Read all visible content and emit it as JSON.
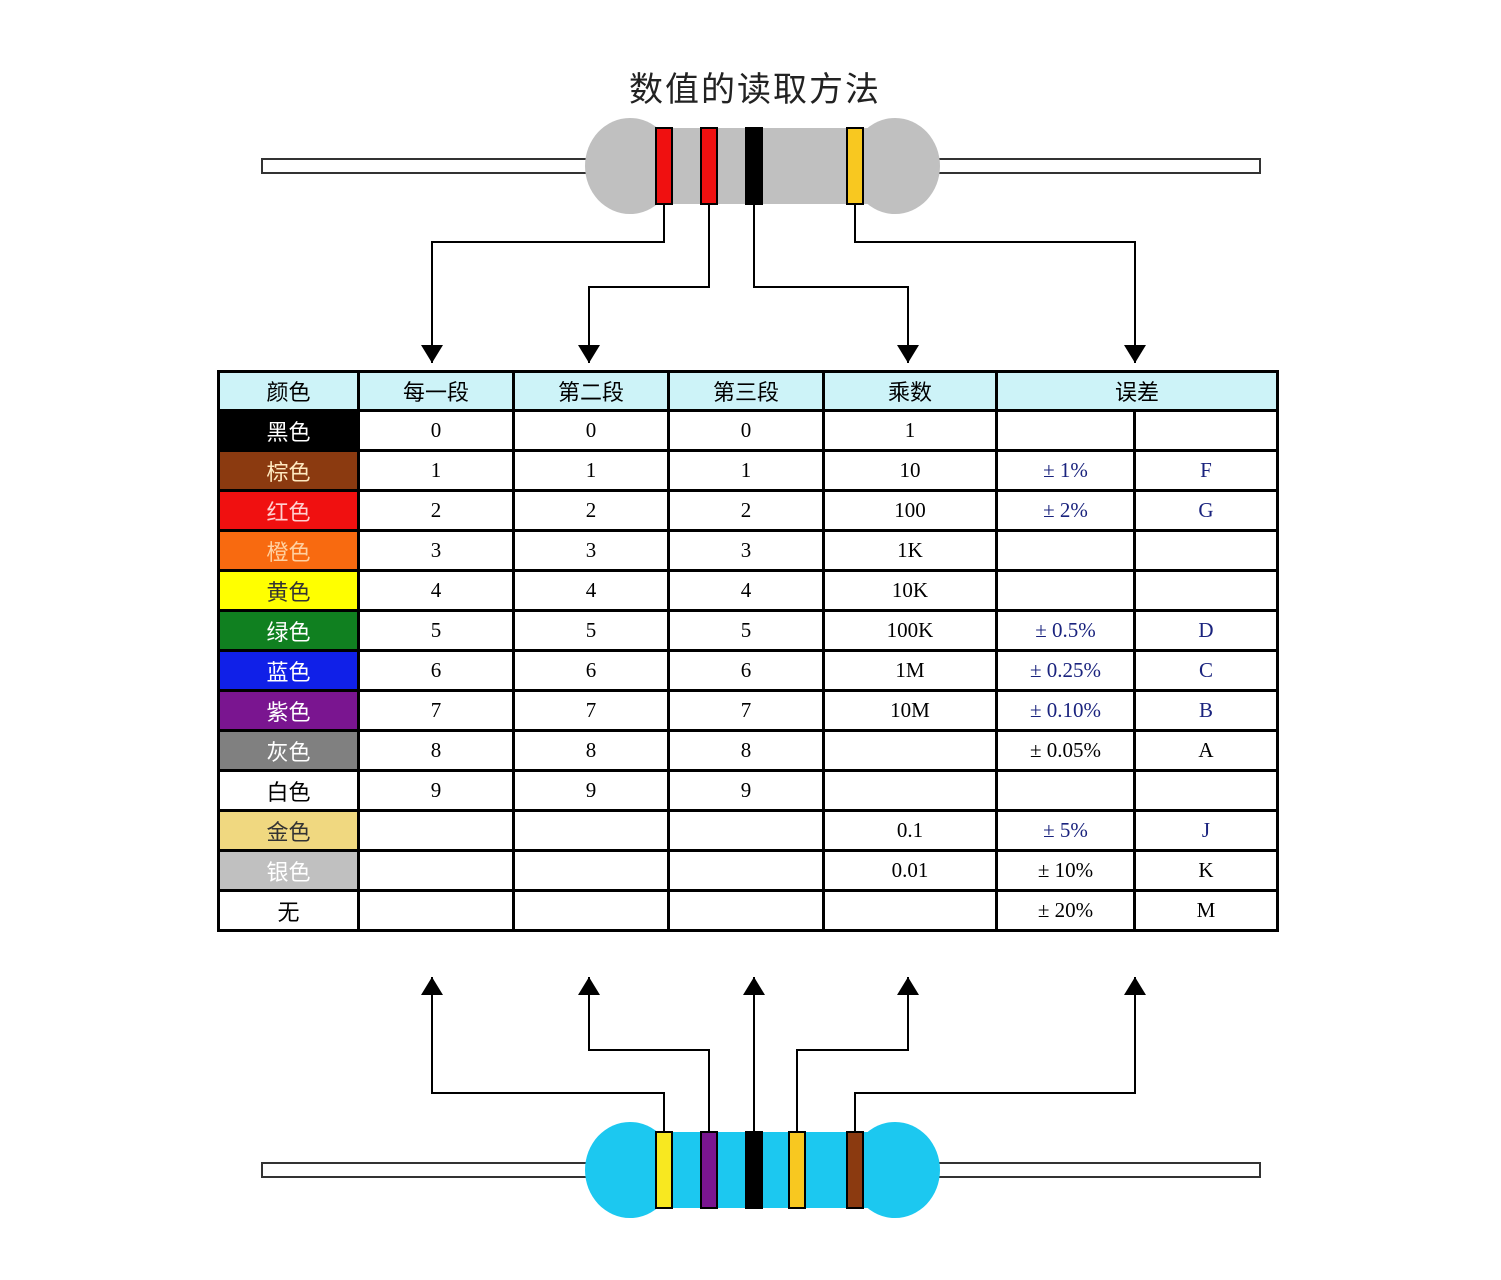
{
  "title": "数值的读取方法",
  "headers": [
    "颜色",
    "每一段",
    "第二段",
    "第三段",
    "乘数",
    "误差"
  ],
  "rows": [
    {
      "color": "黑色",
      "bg": "#000000",
      "fg": "#ffffff",
      "d1": "0",
      "d2": "0",
      "d3": "0",
      "mult": "1",
      "tol": "",
      "code": "",
      "tol_blue": false
    },
    {
      "color": "棕色",
      "bg": "#8b3a10",
      "fg": "#ffe9c0",
      "d1": "1",
      "d2": "1",
      "d3": "1",
      "mult": "10",
      "tol": "± 1%",
      "code": "F",
      "tol_blue": true
    },
    {
      "color": "红色",
      "bg": "#f01010",
      "fg": "#ffd0d0",
      "d1": "2",
      "d2": "2",
      "d3": "2",
      "mult": "100",
      "tol": "± 2%",
      "code": "G",
      "tol_blue": true
    },
    {
      "color": "橙色",
      "bg": "#f86a10",
      "fg": "#ffd0a0",
      "d1": "3",
      "d2": "3",
      "d3": "3",
      "mult": "1K",
      "tol": "",
      "code": "",
      "tol_blue": false
    },
    {
      "color": "黄色",
      "bg": "#ffff00",
      "fg": "#333333",
      "d1": "4",
      "d2": "4",
      "d3": "4",
      "mult": "10K",
      "tol": "",
      "code": "",
      "tol_blue": false
    },
    {
      "color": "绿色",
      "bg": "#108020",
      "fg": "#ffffff",
      "d1": "5",
      "d2": "5",
      "d3": "5",
      "mult": "100K",
      "tol": "± 0.5%",
      "code": "D",
      "tol_blue": true
    },
    {
      "color": "蓝色",
      "bg": "#1020e8",
      "fg": "#ffffff",
      "d1": "6",
      "d2": "6",
      "d3": "6",
      "mult": "1M",
      "tol": "± 0.25%",
      "code": "C",
      "tol_blue": true
    },
    {
      "color": "紫色",
      "bg": "#7a1590",
      "fg": "#ffffff",
      "d1": "7",
      "d2": "7",
      "d3": "7",
      "mult": "10M",
      "tol": "± 0.10%",
      "code": "B",
      "tol_blue": true
    },
    {
      "color": "灰色",
      "bg": "#808080",
      "fg": "#ffffff",
      "d1": "8",
      "d2": "8",
      "d3": "8",
      "mult": "",
      "tol": "± 0.05%",
      "code": "A",
      "tol_blue": false
    },
    {
      "color": "白色",
      "bg": "#ffffff",
      "fg": "#000000",
      "d1": "9",
      "d2": "9",
      "d3": "9",
      "mult": "",
      "tol": "",
      "code": "",
      "tol_blue": false
    },
    {
      "color": "金色",
      "bg": "#f0d880",
      "fg": "#333333",
      "d1": "",
      "d2": "",
      "d3": "",
      "mult": "0.1",
      "tol": "± 5%",
      "code": "J",
      "tol_blue": true
    },
    {
      "color": "银色",
      "bg": "#c0c0c0",
      "fg": "#ffffff",
      "d1": "",
      "d2": "",
      "d3": "",
      "mult": "0.01",
      "tol": "± 10%",
      "code": "K",
      "tol_blue": false
    },
    {
      "color": "无",
      "bg": "#ffffff",
      "fg": "#000000",
      "d1": "",
      "d2": "",
      "d3": "",
      "mult": "",
      "tol": "± 20%",
      "code": "M",
      "tol_blue": false
    }
  ],
  "top_resistor": {
    "body_color": "#c0c0c0",
    "bands": [
      "#f01010",
      "#f01010",
      "#000000",
      "#f8c820"
    ]
  },
  "bottom_resistor": {
    "body_color": "#1cc8f0",
    "bands": [
      "#f8e820",
      "#7a1590",
      "#000000",
      "#f8c820",
      "#8b3a10"
    ]
  }
}
